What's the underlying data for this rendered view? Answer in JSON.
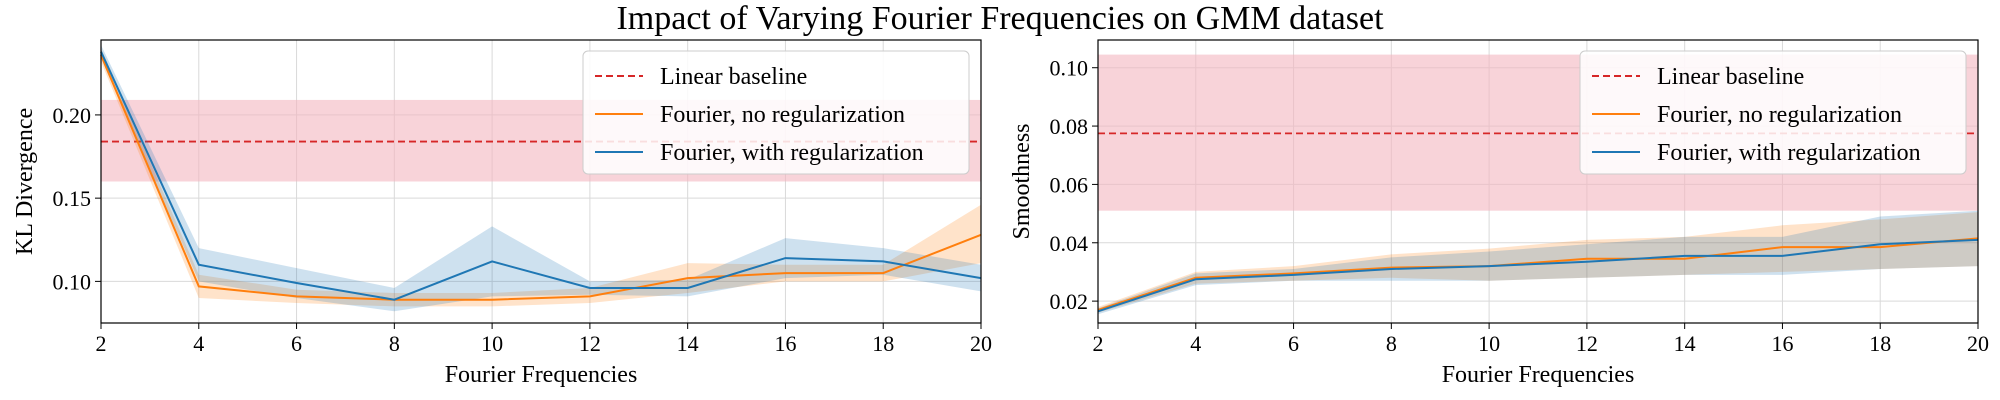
{
  "figure": {
    "title": "Impact of Varying Fourier Frequencies on GMM dataset"
  },
  "colors": {
    "baseline": "#d62728",
    "baseline_band": "#f4b6c0",
    "no_reg": "#ff7f0e",
    "with_reg": "#1f77b4",
    "grid": "#d9d9d9"
  },
  "chart_data": [
    {
      "type": "line",
      "xlabel": "Fourier Frequencies",
      "ylabel": "KL Divergence",
      "xlim": [
        2,
        20
      ],
      "ylim": [
        0.075,
        0.245
      ],
      "xticks": [
        2,
        4,
        6,
        8,
        10,
        12,
        14,
        16,
        18,
        20
      ],
      "yticks": [
        "0.10",
        "0.15",
        "0.20"
      ],
      "ytick_values": [
        0.1,
        0.15,
        0.2
      ],
      "grid": true,
      "legend_position": "upper-right",
      "baseline": {
        "name": "Linear baseline",
        "value": 0.184,
        "band": [
          0.16,
          0.209
        ]
      },
      "x": [
        2,
        4,
        6,
        8,
        10,
        12,
        14,
        16,
        18,
        20
      ],
      "series": [
        {
          "name": "Fourier, no regularization",
          "values": [
            0.236,
            0.097,
            0.091,
            0.089,
            0.089,
            0.091,
            0.102,
            0.105,
            0.105,
            0.128
          ],
          "lower": [
            0.232,
            0.09,
            0.087,
            0.085,
            0.085,
            0.087,
            0.093,
            0.1,
            0.1,
            0.111
          ],
          "upper": [
            0.24,
            0.104,
            0.095,
            0.093,
            0.093,
            0.096,
            0.111,
            0.11,
            0.11,
            0.146
          ]
        },
        {
          "name": "Fourier, with regularization",
          "values": [
            0.238,
            0.11,
            0.099,
            0.089,
            0.112,
            0.096,
            0.096,
            0.114,
            0.112,
            0.102
          ],
          "lower": [
            0.234,
            0.1,
            0.09,
            0.082,
            0.091,
            0.092,
            0.091,
            0.102,
            0.104,
            0.094
          ],
          "upper": [
            0.242,
            0.12,
            0.108,
            0.096,
            0.133,
            0.1,
            0.101,
            0.126,
            0.12,
            0.11
          ]
        }
      ]
    },
    {
      "type": "line",
      "xlabel": "Fourier Frequencies",
      "ylabel": "Smoothness",
      "xlim": [
        2,
        20
      ],
      "ylim": [
        0.0125,
        0.1095
      ],
      "xticks": [
        2,
        4,
        6,
        8,
        10,
        12,
        14,
        16,
        18,
        20
      ],
      "yticks": [
        "0.02",
        "0.04",
        "0.06",
        "0.08",
        "0.10"
      ],
      "ytick_values": [
        0.02,
        0.04,
        0.06,
        0.08,
        0.1
      ],
      "grid": true,
      "legend_position": "upper-right",
      "baseline": {
        "name": "Linear baseline",
        "value": 0.0775,
        "band": [
          0.051,
          0.1045
        ]
      },
      "x": [
        2,
        4,
        6,
        8,
        10,
        12,
        14,
        16,
        18,
        20
      ],
      "series": [
        {
          "name": "Fourier, no regularization",
          "values": [
            0.017,
            0.028,
            0.0295,
            0.0315,
            0.032,
            0.0345,
            0.0345,
            0.0385,
            0.0385,
            0.0415
          ],
          "lower": [
            0.016,
            0.026,
            0.027,
            0.028,
            0.027,
            0.028,
            0.029,
            0.03,
            0.031,
            0.032
          ],
          "upper": [
            0.018,
            0.03,
            0.032,
            0.036,
            0.038,
            0.041,
            0.042,
            0.046,
            0.048,
            0.0505
          ]
        },
        {
          "name": "Fourier, with regularization",
          "values": [
            0.0165,
            0.0275,
            0.029,
            0.031,
            0.032,
            0.0335,
            0.0355,
            0.0355,
            0.0395,
            0.041
          ],
          "lower": [
            0.0155,
            0.0255,
            0.027,
            0.027,
            0.027,
            0.028,
            0.029,
            0.029,
            0.031,
            0.032
          ],
          "upper": [
            0.0175,
            0.0295,
            0.031,
            0.035,
            0.037,
            0.0395,
            0.042,
            0.042,
            0.049,
            0.051
          ]
        }
      ]
    }
  ]
}
